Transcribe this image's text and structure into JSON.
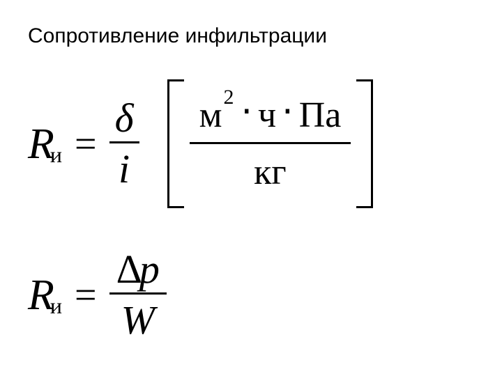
{
  "title": "Сопротивление инфильтрации",
  "formula1": {
    "left_var": "R",
    "left_sub": "и",
    "equals": "=",
    "frac_num": "δ",
    "frac_den": "i",
    "units_num_m": "м",
    "units_num_sup": "2",
    "units_num_dot1": "⋅",
    "units_num_ch": "ч",
    "units_num_dot2": "⋅",
    "units_num_pa": "Па",
    "units_den": "кг"
  },
  "formula2": {
    "left_var": "R",
    "left_sub": "и",
    "equals": "=",
    "frac_num_delta": "Δ",
    "frac_num_p": "p",
    "frac_den": "W"
  },
  "style": {
    "background": "#ffffff",
    "text_color": "#000000",
    "title_font_family": "Arial",
    "title_fontsize": 30,
    "math_font_family": "Times New Roman",
    "math_fontsize": 60,
    "bracket_height": 185,
    "bar_thickness": 3
  }
}
